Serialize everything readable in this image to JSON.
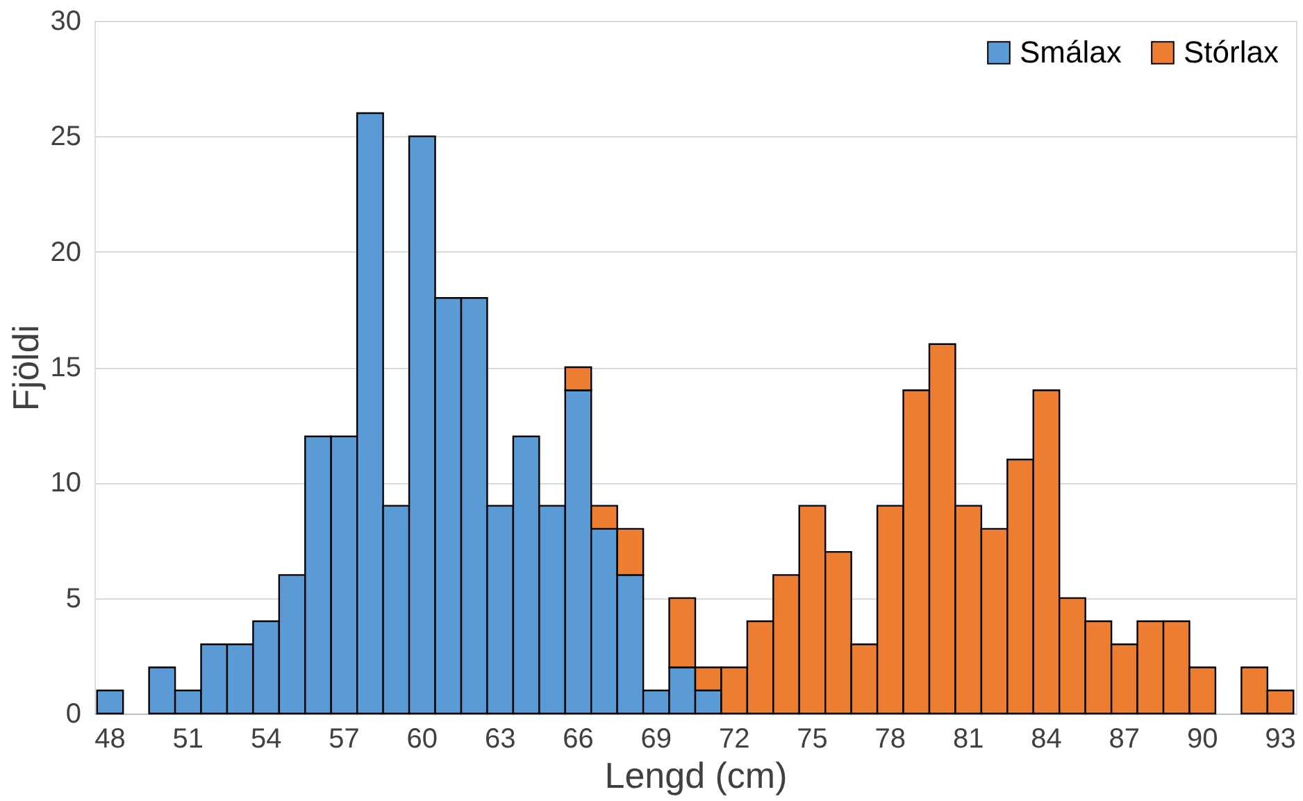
{
  "chart_data": {
    "type": "bar",
    "stacked": true,
    "xlabel": "Lengd (cm)",
    "ylabel": "Fjöldi",
    "categories": [
      "48",
      null,
      null,
      "51",
      null,
      null,
      "54",
      null,
      null,
      "57",
      null,
      null,
      "60",
      null,
      null,
      "63",
      null,
      null,
      "66",
      null,
      null,
      "69",
      null,
      null,
      "72",
      null,
      null,
      "75",
      null,
      null,
      "78",
      null,
      null,
      "81",
      null,
      null,
      "84",
      null,
      null,
      "87",
      null,
      null,
      "90",
      null,
      null,
      "93"
    ],
    "series": [
      {
        "name": "Smálax",
        "color": "#5b9bd5",
        "values": [
          1,
          null,
          2,
          1,
          3,
          3,
          4,
          6,
          12,
          12,
          26,
          9,
          25,
          18,
          18,
          9,
          12,
          9,
          14,
          8,
          6,
          1,
          2,
          1,
          null,
          null,
          null,
          null,
          null,
          null,
          null,
          null,
          null,
          null,
          null,
          null,
          null,
          null,
          null,
          null,
          null,
          null,
          null,
          null,
          null,
          null
        ]
      },
      {
        "name": "Stórlax",
        "color": "#ed7d31",
        "values": [
          null,
          null,
          null,
          null,
          null,
          null,
          null,
          null,
          null,
          null,
          null,
          null,
          null,
          null,
          null,
          null,
          null,
          null,
          1,
          1,
          2,
          null,
          3,
          1,
          2,
          4,
          6,
          9,
          7,
          3,
          9,
          14,
          16,
          9,
          8,
          11,
          14,
          5,
          4,
          3,
          4,
          4,
          2,
          null,
          2,
          1
        ]
      }
    ],
    "ylim": [
      0,
      30
    ],
    "yticks": [
      0,
      5,
      10,
      15,
      20,
      25,
      30
    ],
    "grid": "y",
    "legend": "top right"
  }
}
